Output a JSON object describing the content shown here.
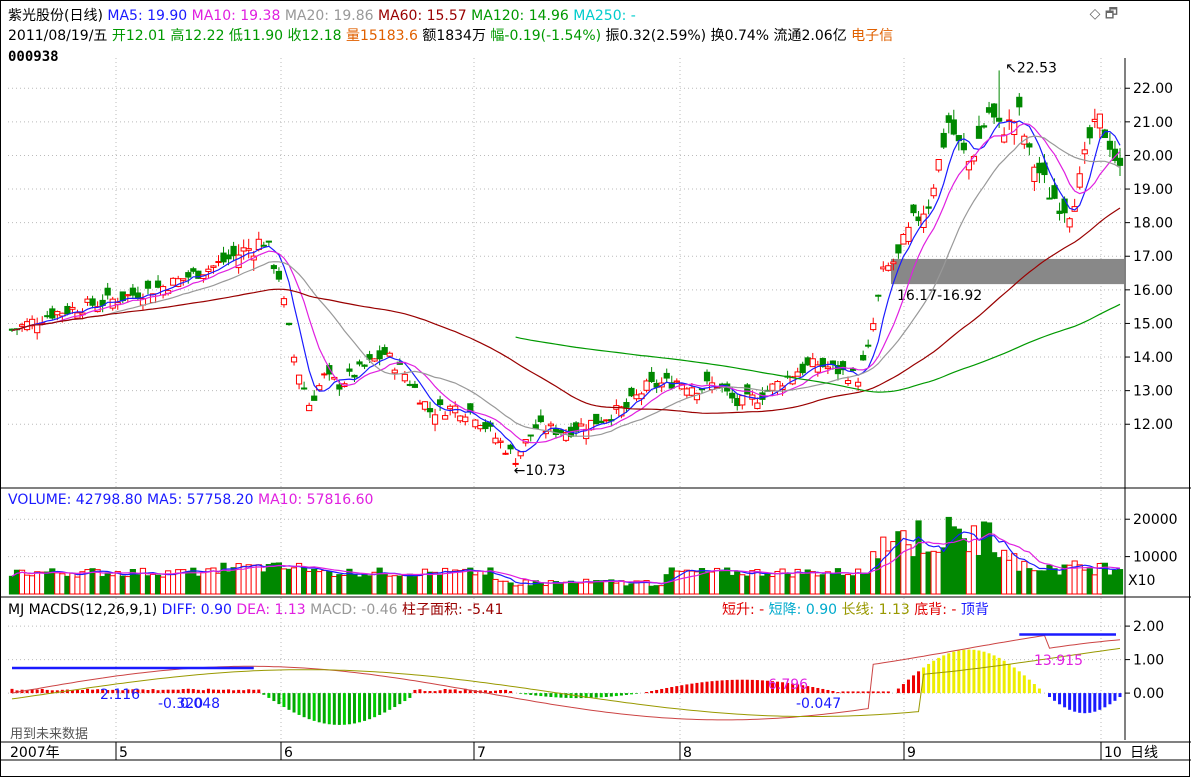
{
  "header": {
    "stock_name": "紫光股份(日线)",
    "ma": [
      {
        "label": "MA5: 19.90",
        "color": "#1a1aff"
      },
      {
        "label": "MA10: 19.38",
        "color": "#e020e0"
      },
      {
        "label": "MA20: 19.86",
        "color": "#999999"
      },
      {
        "label": "MA60: 15.57",
        "color": "#990000"
      },
      {
        "label": "MA120: 14.96",
        "color": "#009900"
      },
      {
        "label": "MA250: -",
        "color": "#00cccc"
      }
    ],
    "line2": [
      {
        "text": "2011/08/19/五",
        "color": "#000000"
      },
      {
        "text": " 开12.01",
        "color": "#009900"
      },
      {
        "text": " 高12.22",
        "color": "#009900"
      },
      {
        "text": " 低11.90",
        "color": "#009900"
      },
      {
        "text": " 收12.18",
        "color": "#009900"
      },
      {
        "text": " 量15183.6",
        "color": "#e06000"
      },
      {
        "text": " 额1834万",
        "color": "#000000"
      },
      {
        "text": " 幅-0.19(-1.54%)",
        "color": "#009900"
      },
      {
        "text": " 振0.32(2.59%)",
        "color": "#000000"
      },
      {
        "text": " 换0.74%",
        "color": "#000000"
      },
      {
        "text": " 流通2.06亿",
        "color": "#000000"
      },
      {
        "text": " 电子信",
        "color": "#e06000"
      }
    ],
    "code": "000938",
    "window_icons": "◇ 🗗"
  },
  "price_panel": {
    "annotations": {
      "high": "22.53",
      "low": "10.73",
      "zone": "16.17-16.92"
    }
  },
  "volume_panel": {
    "legend": [
      {
        "text": "VOLUME: 42798.80",
        "color": "#1a1aff"
      },
      {
        "text": " MA5: 57758.20",
        "color": "#1a1aff"
      },
      {
        "text": " MA10: 57816.60",
        "color": "#e020e0"
      }
    ],
    "unit": "X10"
  },
  "macd_panel": {
    "legend": [
      {
        "text": "MJ  MACDS(12,26,9,1)",
        "color": "#000000"
      },
      {
        "text": " DIFF: 0.90",
        "color": "#1a1aff"
      },
      {
        "text": " DEA: 1.13",
        "color": "#e020e0"
      },
      {
        "text": " MACD: -0.46",
        "color": "#999999"
      },
      {
        "text": " 柱子面积: -5.41",
        "color": "#990000"
      }
    ],
    "legend_right": [
      {
        "text": "短升: -",
        "color": "#e00000"
      },
      {
        "text": "  短降: 0.90",
        "color": "#00aacc"
      },
      {
        "text": "  长线: 1.13",
        "color": "#999900"
      },
      {
        "text": "   底背: -",
        "color": "#e00000"
      },
      {
        "text": "  顶背",
        "color": "#1a1aff"
      }
    ],
    "labels": {
      "a": "2.116",
      "b": "-0.320",
      "c": "0.048",
      "d": "6.796",
      "e": "-0.047",
      "f": "13.915"
    },
    "footnote": "用到未来数据"
  },
  "chart_data": {
    "type": "candlestick",
    "price_axis": {
      "ticks": [
        "22.00",
        "21.00",
        "20.00",
        "19.00",
        "18.00",
        "17.00",
        "16.00",
        "15.00",
        "14.00",
        "13.00",
        "12.00"
      ],
      "ylim": [
        10.4,
        22.9
      ]
    },
    "volume_axis": {
      "ticks": [
        "20000",
        "10000"
      ],
      "ylim": [
        0,
        23000
      ]
    },
    "macd_axis": {
      "ticks": [
        "2.00",
        "1.00",
        "0.00"
      ],
      "ylim": [
        -1.4,
        2.6
      ]
    },
    "time_axis": [
      "2007年",
      "5",
      "6",
      "7",
      "8",
      "9",
      "10",
      "日线"
    ],
    "zone": [
      16.17,
      16.92
    ],
    "high": 22.53,
    "low": 10.73
  }
}
